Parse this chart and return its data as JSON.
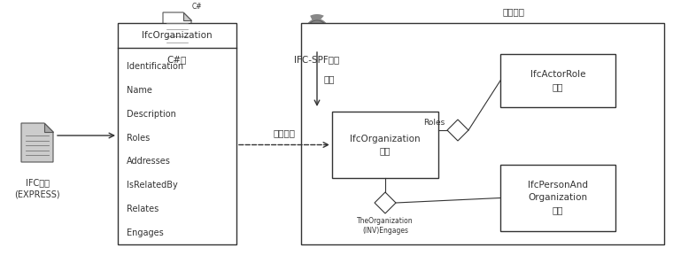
{
  "bg_color": "#ffffff",
  "fig_width": 7.6,
  "fig_height": 3.06,
  "ifc_outline_label": "IFC大纲\n(EXPRESS)",
  "cs_class_label": "C#类",
  "ifc_spf_label": "IFC-SPF数据",
  "memory_label": "内存对象",
  "class_title": "IfcOrganization",
  "class_fields": [
    "Identification",
    "Name",
    "Description",
    "Roles",
    "Addresses",
    "IsRelatedBy",
    "Relates",
    "Engages"
  ],
  "ifc_org_instance_label": "IfcOrganization\n实例",
  "actor_role_label": "IfcActorRole\n实例",
  "person_org_label": "IfcPersonAnd\nOrganization\n实例",
  "roles_label": "Roles",
  "theorg_label": "TheOrganization\n(INV)Engages",
  "parse_label": "解析",
  "create_label": "生成实例"
}
